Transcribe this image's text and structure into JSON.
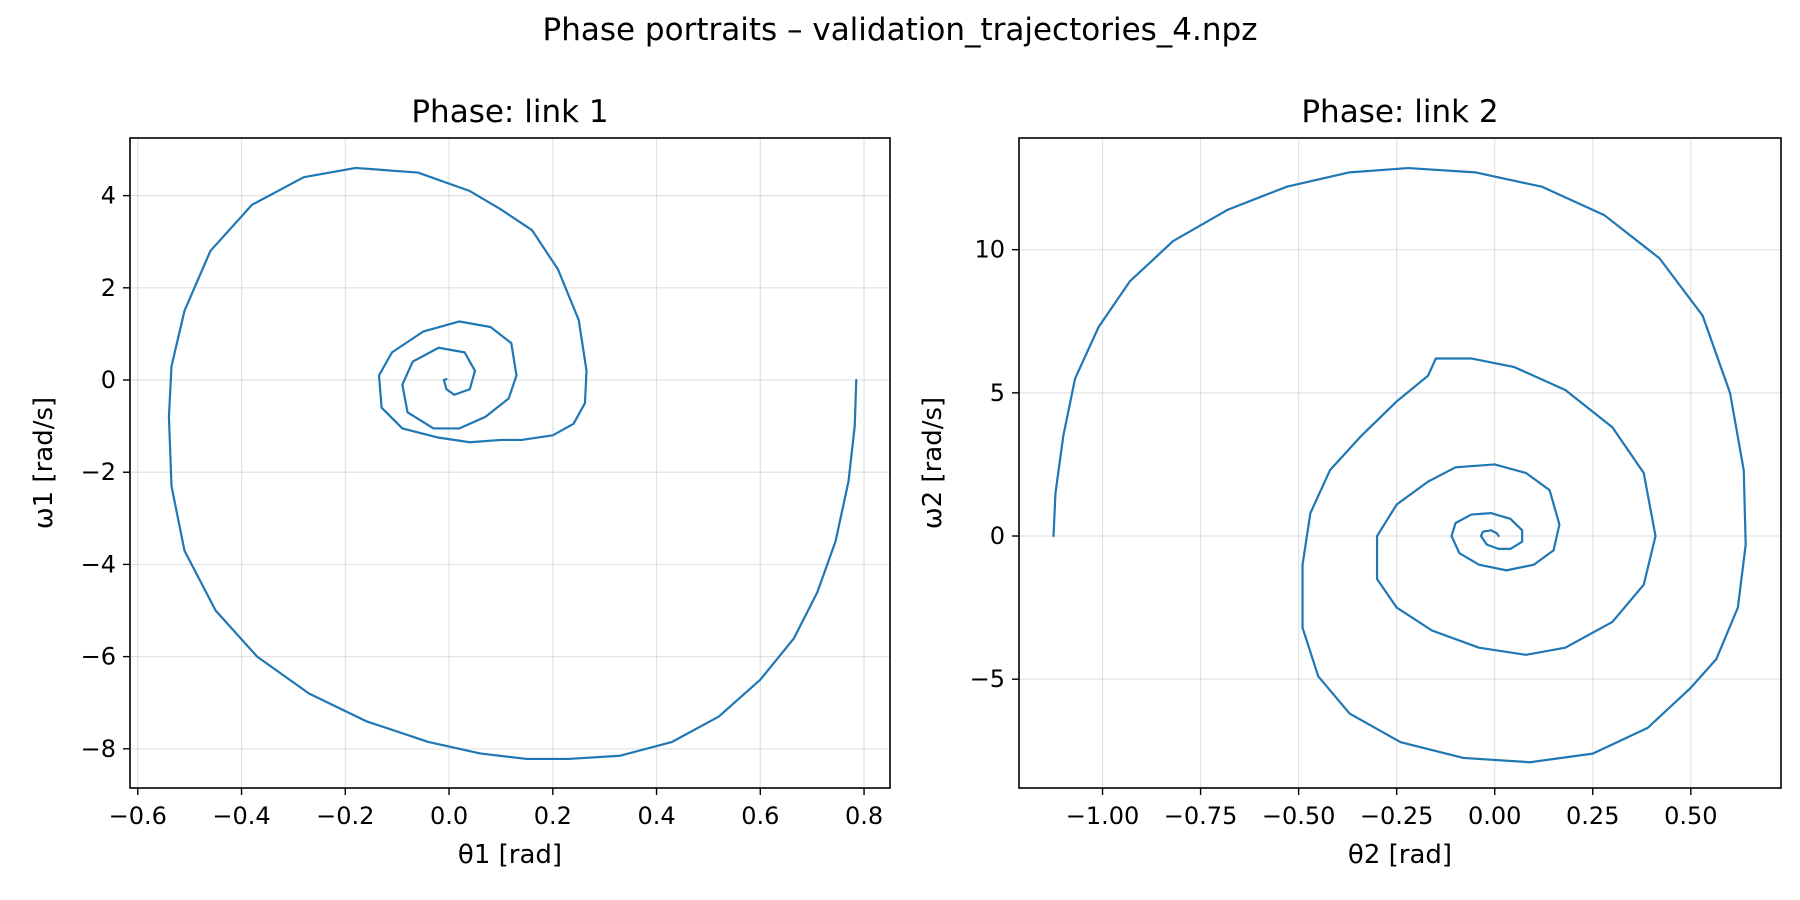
{
  "figure": {
    "suptitle": "Phase portraits – validation_trajectories_4.npz"
  },
  "chart_data": [
    {
      "type": "line",
      "title": "Phase: link 1",
      "xlabel": "θ1 [rad]",
      "ylabel": "ω1 [rad/s]",
      "xlim": [
        -0.615,
        0.85
      ],
      "ylim": [
        -8.85,
        5.25
      ],
      "xticks": [
        -0.6,
        -0.4,
        -0.2,
        0.0,
        0.2,
        0.4,
        0.6,
        0.8
      ],
      "xtick_labels": [
        "−0.6",
        "−0.4",
        "−0.2",
        "0.0",
        "0.2",
        "0.4",
        "0.6",
        "0.8"
      ],
      "yticks": [
        -8,
        -6,
        -4,
        -2,
        0,
        2,
        4
      ],
      "ytick_labels": [
        "−8",
        "−6",
        "−4",
        "−2",
        "0",
        "2",
        "4"
      ],
      "grid": true,
      "color": "#1f77b4",
      "series": [
        {
          "x": [
            0.785,
            0.782,
            0.77,
            0.745,
            0.71,
            0.665,
            0.6,
            0.52,
            0.43,
            0.33,
            0.23,
            0.15,
            0.06,
            -0.04,
            -0.16,
            -0.27,
            -0.37,
            -0.45,
            -0.51,
            -0.535,
            -0.54,
            -0.535,
            -0.51,
            -0.46,
            -0.38,
            -0.28,
            -0.18,
            -0.06,
            0.04,
            0.1,
            0.16,
            0.21,
            0.25,
            0.265,
            0.262,
            0.24,
            0.2,
            0.14,
            0.1,
            0.04,
            -0.02,
            -0.09,
            -0.13,
            -0.135,
            -0.11,
            -0.05,
            0.02,
            0.08,
            0.12,
            0.13,
            0.115,
            0.07,
            0.02,
            -0.03,
            -0.08,
            -0.09,
            -0.07,
            -0.02,
            0.03,
            0.05,
            0.04,
            0.01,
            -0.005,
            -0.01,
            -0.005
          ],
          "y": [
            0.0,
            -1.0,
            -2.2,
            -3.5,
            -4.6,
            -5.6,
            -6.5,
            -7.3,
            -7.85,
            -8.15,
            -8.22,
            -8.22,
            -8.1,
            -7.85,
            -7.4,
            -6.8,
            -6.0,
            -5.0,
            -3.7,
            -2.3,
            -0.8,
            0.3,
            1.5,
            2.8,
            3.8,
            4.4,
            4.6,
            4.5,
            4.1,
            3.7,
            3.25,
            2.4,
            1.3,
            0.2,
            -0.5,
            -0.95,
            -1.2,
            -1.3,
            -1.3,
            -1.35,
            -1.25,
            -1.05,
            -0.6,
            0.1,
            0.6,
            1.05,
            1.27,
            1.15,
            0.8,
            0.1,
            -0.4,
            -0.8,
            -1.05,
            -1.05,
            -0.7,
            -0.1,
            0.4,
            0.7,
            0.6,
            0.2,
            -0.2,
            -0.32,
            -0.2,
            0.0,
            0.02
          ]
        }
      ]
    },
    {
      "type": "line",
      "title": "Phase: link 2",
      "xlabel": "θ2 [rad]",
      "ylabel": "ω2 [rad/s]",
      "xlim": [
        -1.213,
        0.73
      ],
      "ylim": [
        -8.8,
        13.9
      ],
      "xticks": [
        -1.0,
        -0.75,
        -0.5,
        -0.25,
        0.0,
        0.25,
        0.5
      ],
      "xtick_labels": [
        "−1.00",
        "−0.75",
        "−0.50",
        "−0.25",
        "0.00",
        "0.25",
        "0.50"
      ],
      "yticks": [
        -5,
        0,
        5,
        10
      ],
      "ytick_labels": [
        "−5",
        "0",
        "5",
        "10"
      ],
      "grid": true,
      "color": "#1f77b4",
      "series": [
        {
          "x": [
            -1.125,
            -1.12,
            -1.1,
            -1.07,
            -1.01,
            -0.93,
            -0.82,
            -0.68,
            -0.53,
            -0.37,
            -0.22,
            -0.05,
            0.12,
            0.28,
            0.42,
            0.53,
            0.6,
            0.635,
            0.64,
            0.62,
            0.565,
            0.5,
            0.39,
            0.25,
            0.09,
            -0.08,
            -0.24,
            -0.37,
            -0.45,
            -0.49,
            -0.49,
            -0.47,
            -0.42,
            -0.34,
            -0.25,
            -0.17,
            -0.15,
            -0.06,
            0.05,
            0.18,
            0.3,
            0.38,
            0.41,
            0.38,
            0.3,
            0.18,
            0.08,
            -0.04,
            -0.16,
            -0.25,
            -0.3,
            -0.3,
            -0.25,
            -0.17,
            -0.1,
            0.0,
            0.08,
            0.14,
            0.165,
            0.15,
            0.1,
            0.03,
            -0.04,
            -0.09,
            -0.11,
            -0.1,
            -0.06,
            -0.01,
            0.04,
            0.07,
            0.07,
            0.04,
            0.01,
            -0.02,
            -0.035,
            -0.03,
            -0.01,
            0.005,
            0.01
          ],
          "y": [
            0.0,
            1.5,
            3.5,
            5.5,
            7.3,
            8.9,
            10.3,
            11.4,
            12.2,
            12.7,
            12.85,
            12.7,
            12.2,
            11.2,
            9.7,
            7.7,
            5.0,
            2.3,
            -0.3,
            -2.5,
            -4.3,
            -5.3,
            -6.7,
            -7.6,
            -7.9,
            -7.75,
            -7.2,
            -6.2,
            -4.9,
            -3.2,
            -1.0,
            0.8,
            2.3,
            3.5,
            4.7,
            5.6,
            6.2,
            6.2,
            5.9,
            5.1,
            3.8,
            2.2,
            0.0,
            -1.7,
            -3.0,
            -3.9,
            -4.15,
            -3.9,
            -3.3,
            -2.5,
            -1.5,
            0.0,
            1.1,
            1.9,
            2.4,
            2.5,
            2.2,
            1.6,
            0.4,
            -0.5,
            -1.0,
            -1.2,
            -1.0,
            -0.6,
            0.0,
            0.45,
            0.75,
            0.8,
            0.6,
            0.2,
            -0.2,
            -0.45,
            -0.45,
            -0.3,
            0.0,
            0.15,
            0.2,
            0.1,
            0.0
          ]
        }
      ]
    }
  ]
}
